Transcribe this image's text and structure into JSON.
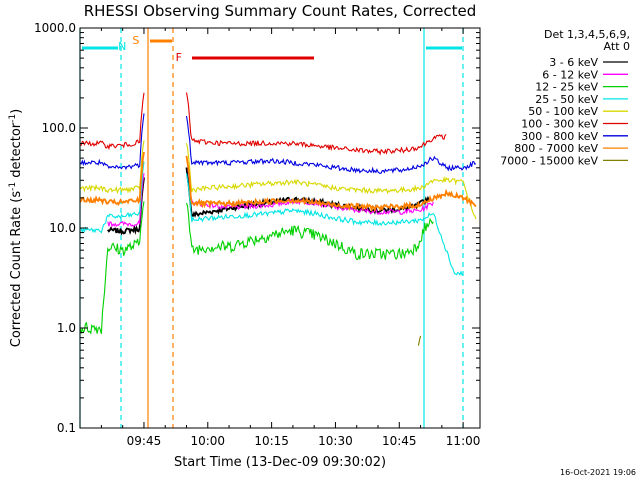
{
  "chart_data": {
    "type": "line",
    "title": "RHESSI Observing Summary Count Rates, Corrected",
    "xlabel": "Start Time (13-Dec-09 09:30:02)",
    "ylabel_main": "Corrected Count Rate (s",
    "ylabel_sup": "-1",
    "ylabel_tail": " detector",
    "ylabel_end": ")",
    "yscale": "log",
    "ylim": [
      0.1,
      1000.0
    ],
    "xlim_minutes": [
      -0.03,
      93.97
    ],
    "x_ticks": [
      {
        "m": 15,
        "label": "09:45"
      },
      {
        "m": 30,
        "label": "10:00"
      },
      {
        "m": 45,
        "label": "10:15"
      },
      {
        "m": 60,
        "label": "10:30"
      },
      {
        "m": 75,
        "label": "10:45"
      },
      {
        "m": 90,
        "label": "11:00"
      }
    ],
    "y_ticks": [
      {
        "v": 0.1,
        "label": "0.1"
      },
      {
        "v": 1,
        "label": "1.0"
      },
      {
        "v": 10,
        "label": "10.0"
      },
      {
        "v": 100,
        "label": "100.0"
      },
      {
        "v": 1000,
        "label": "1000.0"
      }
    ],
    "legend_header": [
      "Det 1,3,4,5,6,9,",
      "Att 0"
    ],
    "series": [
      {
        "name": "3 - 6 keV",
        "color": "#000000",
        "points": [
          [
            6.5,
            9.5
          ],
          [
            10,
            9.3
          ],
          [
            14,
            9.8
          ],
          [
            15,
            11
          ],
          [
            36,
            16
          ],
          [
            40,
            17
          ],
          [
            45,
            18
          ],
          [
            50,
            19.5
          ],
          [
            55,
            18.5
          ],
          [
            60,
            17
          ],
          [
            65,
            16
          ],
          [
            70,
            15
          ],
          [
            76,
            15.5
          ],
          [
            79,
            16.5
          ],
          [
            82,
            20
          ]
        ]
      },
      {
        "name": "6 - 12 keV",
        "color": "#ff00ff",
        "points": [
          [
            6.5,
            11
          ],
          [
            10,
            11
          ],
          [
            14,
            11
          ],
          [
            15,
            12
          ],
          [
            26,
            18
          ],
          [
            30,
            17
          ],
          [
            35,
            16
          ],
          [
            40,
            16.5
          ],
          [
            45,
            17
          ],
          [
            50,
            18.5
          ],
          [
            55,
            18
          ],
          [
            60,
            16
          ],
          [
            65,
            15
          ],
          [
            70,
            14.5
          ],
          [
            76,
            14.5
          ],
          [
            80,
            15
          ],
          [
            83,
            18
          ]
        ]
      },
      {
        "name": "12 - 25 keV",
        "color": "#00d000",
        "points": [
          [
            0,
            1.0
          ],
          [
            5,
            1.0
          ],
          [
            6.5,
            6.5
          ],
          [
            10,
            6.0
          ],
          [
            14,
            7.0
          ],
          [
            15,
            7.5
          ],
          [
            26,
            6.0
          ],
          [
            30,
            6.5
          ],
          [
            35,
            6.5
          ],
          [
            40,
            7.5
          ],
          [
            45,
            8.5
          ],
          [
            50,
            9.5
          ],
          [
            55,
            8.5
          ],
          [
            60,
            7.0
          ],
          [
            65,
            5.5
          ],
          [
            70,
            5.5
          ],
          [
            76,
            5.5
          ],
          [
            79,
            6.5
          ],
          [
            81,
            10
          ],
          [
            83,
            12
          ]
        ]
      },
      {
        "name": "25 - 50 keV",
        "color": "#00e5e5",
        "points": [
          [
            0,
            9.5
          ],
          [
            5,
            9.5
          ],
          [
            6.5,
            13
          ],
          [
            10,
            13
          ],
          [
            14,
            14
          ],
          [
            15,
            16
          ],
          [
            26,
            12
          ],
          [
            30,
            12.5
          ],
          [
            35,
            13
          ],
          [
            40,
            13.5
          ],
          [
            45,
            14
          ],
          [
            50,
            15
          ],
          [
            55,
            14
          ],
          [
            60,
            12.5
          ],
          [
            65,
            11.5
          ],
          [
            70,
            11.2
          ],
          [
            76,
            11.5
          ],
          [
            80,
            12
          ],
          [
            83,
            14
          ],
          [
            88,
            3.5
          ],
          [
            90,
            3.5
          ]
        ]
      },
      {
        "name": "50 - 100 keV",
        "color": "#d8d800",
        "points": [
          [
            0,
            25
          ],
          [
            5,
            25
          ],
          [
            6.5,
            24
          ],
          [
            10,
            24
          ],
          [
            14,
            25
          ],
          [
            15,
            27
          ],
          [
            26,
            24
          ],
          [
            30,
            25
          ],
          [
            35,
            26
          ],
          [
            40,
            27
          ],
          [
            45,
            28
          ],
          [
            50,
            29
          ],
          [
            55,
            27
          ],
          [
            60,
            25
          ],
          [
            65,
            24
          ],
          [
            70,
            23.5
          ],
          [
            76,
            24
          ],
          [
            80,
            25
          ],
          [
            83,
            30
          ],
          [
            86,
            30
          ],
          [
            90,
            29
          ],
          [
            93,
            12
          ]
        ]
      },
      {
        "name": "100 - 300 keV",
        "color": "#e00000",
        "points": [
          [
            0,
            70
          ],
          [
            5,
            70
          ],
          [
            6.5,
            66
          ],
          [
            10,
            67
          ],
          [
            14,
            72
          ],
          [
            15,
            80
          ],
          [
            26,
            75
          ],
          [
            30,
            72
          ],
          [
            35,
            70
          ],
          [
            40,
            70
          ],
          [
            45,
            71
          ],
          [
            50,
            70
          ],
          [
            55,
            67
          ],
          [
            60,
            63
          ],
          [
            65,
            60
          ],
          [
            70,
            58
          ],
          [
            76,
            60
          ],
          [
            80,
            65
          ],
          [
            83,
            80
          ],
          [
            86,
            82
          ]
        ]
      },
      {
        "name": "300 - 800 keV",
        "color": "#0000e0",
        "points": [
          [
            0,
            45
          ],
          [
            5,
            45
          ],
          [
            6.5,
            40
          ],
          [
            10,
            40
          ],
          [
            14,
            43
          ],
          [
            15,
            48
          ],
          [
            26,
            46
          ],
          [
            30,
            45
          ],
          [
            35,
            45
          ],
          [
            40,
            46
          ],
          [
            45,
            47
          ],
          [
            50,
            45
          ],
          [
            55,
            43
          ],
          [
            60,
            40
          ],
          [
            65,
            38
          ],
          [
            70,
            37
          ],
          [
            76,
            38
          ],
          [
            80,
            42
          ],
          [
            83,
            50
          ],
          [
            86,
            40
          ],
          [
            90,
            40
          ],
          [
            93,
            45
          ]
        ]
      },
      {
        "name": "800 - 7000 keV",
        "color": "#ff8000",
        "points": [
          [
            0,
            19
          ],
          [
            5,
            19
          ],
          [
            6.5,
            18
          ],
          [
            10,
            18
          ],
          [
            14,
            19
          ],
          [
            15,
            21
          ],
          [
            26,
            18
          ],
          [
            30,
            17.5
          ],
          [
            35,
            17.5
          ],
          [
            40,
            18
          ],
          [
            45,
            18.5
          ],
          [
            50,
            19
          ],
          [
            55,
            18
          ],
          [
            60,
            17
          ],
          [
            65,
            16.5
          ],
          [
            70,
            16
          ],
          [
            76,
            16.5
          ],
          [
            80,
            17
          ],
          [
            83,
            20
          ],
          [
            86,
            22
          ],
          [
            90,
            20
          ],
          [
            93,
            17
          ]
        ]
      },
      {
        "name": "7000 - 15000 keV",
        "color": "#808000",
        "points": [
          [
            79.5,
            0.7
          ],
          [
            80,
            0.8
          ]
        ]
      }
    ],
    "annotations": [
      {
        "text": "N",
        "color": "#00e5e5",
        "m": 9.9
      },
      {
        "text": "S",
        "color": "#ff8000",
        "m": 13.1
      },
      {
        "text": "F",
        "color": "#e00000",
        "m": 23.2
      }
    ],
    "footer_timestamp": "16-Oct-2021 19:06"
  }
}
